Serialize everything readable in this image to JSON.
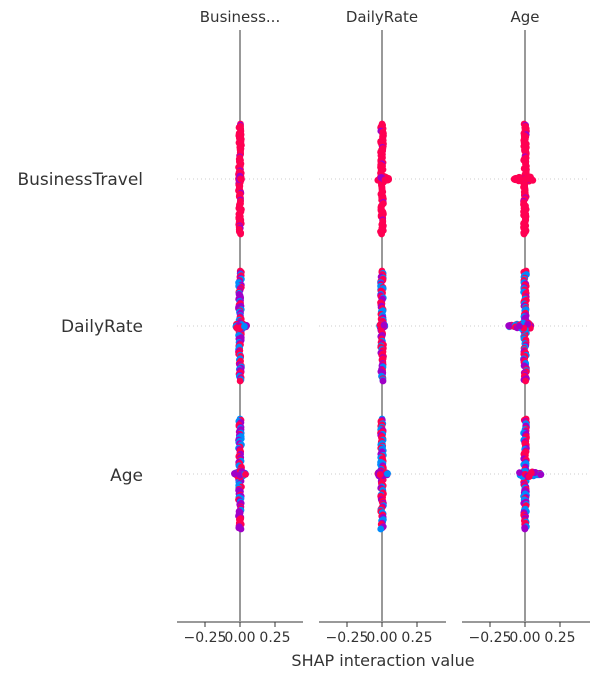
{
  "chart_data": {
    "type": "scatter",
    "subtype": "shap-interaction-summary",
    "panel_titles": [
      "Business...",
      "DailyRate",
      "Age"
    ],
    "features": [
      "BusinessTravel",
      "DailyRate",
      "Age"
    ],
    "xlabel": "SHAP interaction value",
    "xticks": [
      "−0.25",
      "0.00",
      "0.25"
    ],
    "xlim": [
      -0.45,
      0.45
    ],
    "grid": false,
    "colors": {
      "high": "#ff0052",
      "mid": "#a000c8",
      "low": "#008bfb",
      "axis": "#999999"
    },
    "cells": [
      {
        "panel": "Business...",
        "feature": "BusinessTravel",
        "min": -0.01,
        "max": 0.01,
        "spread_y": 1.0,
        "color": "high"
      },
      {
        "panel": "DailyRate",
        "feature": "BusinessTravel",
        "min": -0.03,
        "max": 0.05,
        "spread_y": 1.0,
        "color": "high"
      },
      {
        "panel": "Age",
        "feature": "BusinessTravel",
        "min": -0.08,
        "max": 0.06,
        "spread_y": 1.0,
        "color": "high"
      },
      {
        "panel": "Business...",
        "feature": "DailyRate",
        "min": -0.03,
        "max": 0.05,
        "spread_y": 1.0,
        "color": "mixed"
      },
      {
        "panel": "DailyRate",
        "feature": "DailyRate",
        "min": -0.02,
        "max": 0.02,
        "spread_y": 1.0,
        "color": "mixed"
      },
      {
        "panel": "Age",
        "feature": "DailyRate",
        "min": -0.12,
        "max": 0.05,
        "spread_y": 1.0,
        "color": "mixed"
      },
      {
        "panel": "Business...",
        "feature": "Age",
        "min": -0.04,
        "max": 0.04,
        "spread_y": 1.0,
        "color": "mixed"
      },
      {
        "panel": "DailyRate",
        "feature": "Age",
        "min": -0.03,
        "max": 0.04,
        "spread_y": 1.0,
        "color": "mixed"
      },
      {
        "panel": "Age",
        "feature": "Age",
        "min": -0.04,
        "max": 0.12,
        "spread_y": 1.0,
        "color": "mixed"
      }
    ]
  }
}
